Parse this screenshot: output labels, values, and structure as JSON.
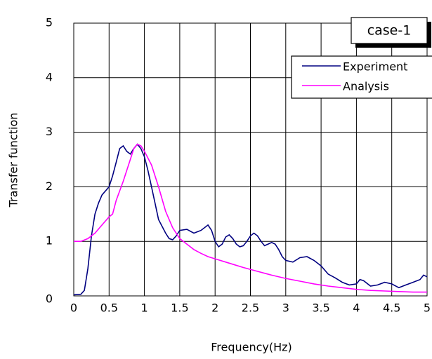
{
  "chart_data": {
    "type": "line",
    "xlabel": "Frequency(Hz)",
    "ylabel": "Transfer function",
    "annotation": "case-1",
    "xlim": [
      0,
      5
    ],
    "ylim": [
      0,
      5
    ],
    "xticks": [
      0,
      0.5,
      1,
      1.5,
      2,
      2.5,
      3,
      3.5,
      4,
      4.5,
      5
    ],
    "yticks": [
      0,
      1,
      2,
      3,
      4,
      5
    ],
    "grid": true,
    "legend": "upper right",
    "series": [
      {
        "name": "Experiment",
        "color": "#000080",
        "x": [
          0,
          0.1,
          0.15,
          0.2,
          0.25,
          0.3,
          0.35,
          0.4,
          0.5,
          0.55,
          0.6,
          0.65,
          0.7,
          0.75,
          0.8,
          0.85,
          0.9,
          0.95,
          1.0,
          1.05,
          1.1,
          1.15,
          1.2,
          1.3,
          1.35,
          1.4,
          1.45,
          1.5,
          1.6,
          1.7,
          1.8,
          1.9,
          1.95,
          2.0,
          2.05,
          2.1,
          2.15,
          2.2,
          2.25,
          2.3,
          2.35,
          2.4,
          2.45,
          2.5,
          2.55,
          2.6,
          2.65,
          2.7,
          2.75,
          2.8,
          2.85,
          2.9,
          2.95,
          3.0,
          3.1,
          3.2,
          3.3,
          3.4,
          3.5,
          3.6,
          3.7,
          3.8,
          3.9,
          4.0,
          4.05,
          4.1,
          4.2,
          4.3,
          4.4,
          4.5,
          4.6,
          4.7,
          4.8,
          4.9,
          4.95,
          5.0
        ],
        "values": [
          0.02,
          0.03,
          0.1,
          0.5,
          1.1,
          1.5,
          1.7,
          1.85,
          2.0,
          2.2,
          2.45,
          2.7,
          2.75,
          2.65,
          2.6,
          2.7,
          2.78,
          2.7,
          2.55,
          2.3,
          2.0,
          1.7,
          1.4,
          1.15,
          1.05,
          1.03,
          1.1,
          1.2,
          1.22,
          1.15,
          1.2,
          1.3,
          1.2,
          1.0,
          0.9,
          0.95,
          1.08,
          1.12,
          1.05,
          0.95,
          0.9,
          0.92,
          1.0,
          1.1,
          1.15,
          1.1,
          1.0,
          0.92,
          0.95,
          0.98,
          0.95,
          0.85,
          0.72,
          0.65,
          0.62,
          0.7,
          0.72,
          0.65,
          0.55,
          0.4,
          0.33,
          0.25,
          0.2,
          0.22,
          0.3,
          0.28,
          0.18,
          0.2,
          0.25,
          0.22,
          0.15,
          0.2,
          0.25,
          0.3,
          0.38,
          0.35
        ]
      },
      {
        "name": "Analysis",
        "color": "#ff00ff",
        "x": [
          0,
          0.1,
          0.2,
          0.3,
          0.4,
          0.5,
          0.55,
          0.6,
          0.7,
          0.8,
          0.85,
          0.9,
          0.95,
          1.0,
          1.1,
          1.2,
          1.3,
          1.4,
          1.5,
          1.6,
          1.7,
          1.8,
          1.9,
          2.0,
          2.2,
          2.4,
          2.6,
          2.8,
          3.0,
          3.2,
          3.4,
          3.6,
          3.8,
          4.0,
          4.2,
          4.4,
          4.6,
          4.8,
          5.0
        ],
        "values": [
          1.0,
          1.0,
          1.05,
          1.15,
          1.3,
          1.45,
          1.5,
          1.75,
          2.1,
          2.5,
          2.7,
          2.78,
          2.75,
          2.65,
          2.4,
          2.0,
          1.55,
          1.25,
          1.05,
          0.95,
          0.85,
          0.78,
          0.72,
          0.68,
          0.6,
          0.52,
          0.45,
          0.38,
          0.32,
          0.27,
          0.22,
          0.18,
          0.15,
          0.12,
          0.1,
          0.09,
          0.08,
          0.07,
          0.07
        ]
      }
    ]
  }
}
